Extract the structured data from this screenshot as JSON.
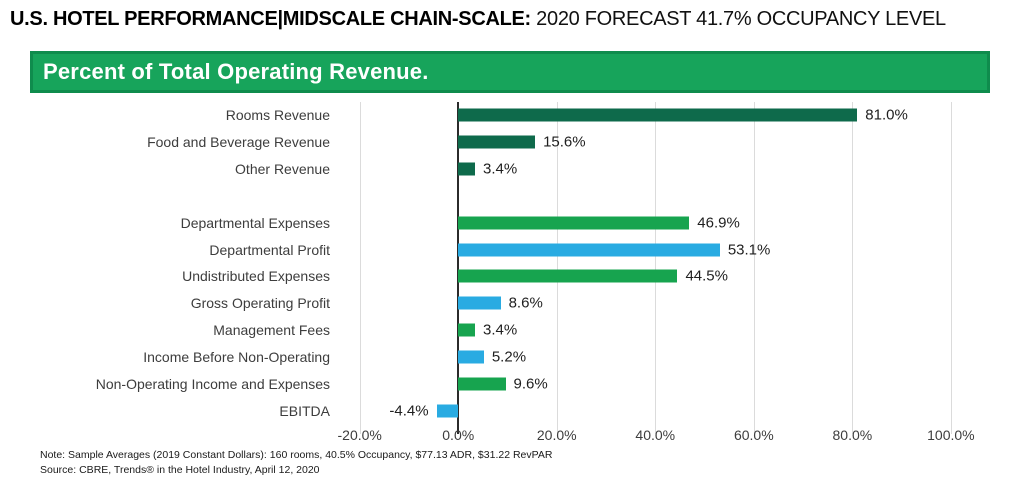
{
  "header": {
    "title_bold": "U.S. HOTEL PERFORMANCE|MIDSCALE CHAIN-SCALE:",
    "title_regular": " 2020 FORECAST 41.7% OCCUPANCY LEVEL"
  },
  "banner": {
    "label": "Percent of Total Operating Revenue."
  },
  "chart_data": {
    "type": "bar",
    "orientation": "horizontal",
    "title": "Percent of Total Operating Revenue.",
    "xlabel": "",
    "ylabel": "",
    "xlim": [
      -24,
      112
    ],
    "grid": true,
    "gridline_color": "#DBDBDB",
    "zero_axis_color": "#2B2B2B",
    "colors": {
      "revenue_dark_green": "#0E6A4B",
      "expense_green": "#17A44F",
      "profit_blue": "#29ABE2",
      "banner_green": "#17A45B"
    },
    "xticks": [
      {
        "value": -20,
        "label": "-20.0%"
      },
      {
        "value": 0,
        "label": "0.0%"
      },
      {
        "value": 20,
        "label": "20.0%"
      },
      {
        "value": 40,
        "label": "40.0%"
      },
      {
        "value": 60,
        "label": "60.0%"
      },
      {
        "value": 80,
        "label": "80.0%"
      },
      {
        "value": 100,
        "label": "100.0%"
      }
    ],
    "rows": [
      {
        "label": "Rooms Revenue",
        "value": 81.0,
        "display": "81.0%",
        "color": "#0E6A4B"
      },
      {
        "label": "Food and Beverage Revenue",
        "value": 15.6,
        "display": "15.6%",
        "color": "#0E6A4B"
      },
      {
        "label": "Other Revenue",
        "value": 3.4,
        "display": "3.4%",
        "color": "#0E6A4B"
      },
      {
        "spacer": true
      },
      {
        "label": "Departmental Expenses",
        "value": 46.9,
        "display": "46.9%",
        "color": "#17A44F"
      },
      {
        "label": "Departmental Profit",
        "value": 53.1,
        "display": "53.1%",
        "color": "#29ABE2"
      },
      {
        "label": "Undistributed Expenses",
        "value": 44.5,
        "display": "44.5%",
        "color": "#17A44F"
      },
      {
        "label": "Gross Operating Profit",
        "value": 8.6,
        "display": "8.6%",
        "color": "#29ABE2"
      },
      {
        "label": "Management Fees",
        "value": 3.4,
        "display": "3.4%",
        "color": "#17A44F"
      },
      {
        "label": "Income Before Non-Operating",
        "value": 5.2,
        "display": "5.2%",
        "color": "#29ABE2"
      },
      {
        "label": "Non-Operating Income and Expenses",
        "value": 9.6,
        "display": "9.6%",
        "color": "#17A44F"
      },
      {
        "label": "EBITDA",
        "value": -4.4,
        "display": "-4.4%",
        "color": "#29ABE2"
      }
    ]
  },
  "footer": {
    "note": "Note: Sample Averages (2019 Constant Dollars): 160 rooms, 40.5% Occupancy, $77.13 ADR, $31.22 RevPAR",
    "source": "Source: CBRE, Trends® in the Hotel Industry, April 12, 2020"
  }
}
